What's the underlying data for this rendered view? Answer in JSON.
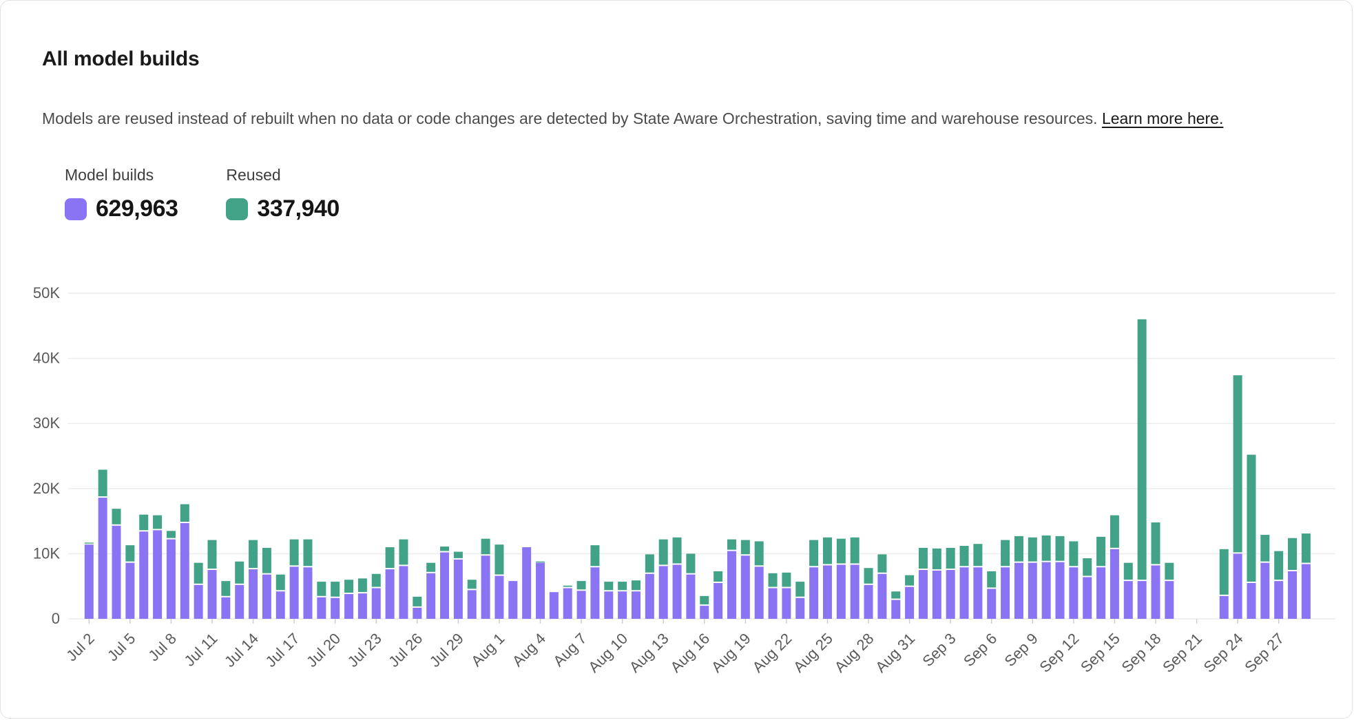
{
  "header": {
    "title": "All model builds",
    "description": "Models are reused instead of rebuilt when no data or code changes are detected by State Aware Orchestration, saving time and warehouse resources.",
    "link_label": "Learn more here."
  },
  "legend": {
    "builds": {
      "label": "Model builds",
      "value": "629,963"
    },
    "reused": {
      "label": "Reused",
      "value": "337,940"
    }
  },
  "colors": {
    "builds": "#8b74f4",
    "reused": "#42a287",
    "grid": "#ececec",
    "axis_text": "#5a5a5a",
    "tick": "#cfcfcf"
  },
  "chart_data": {
    "type": "bar",
    "stacked": true,
    "title": "All model builds",
    "xlabel": "",
    "ylabel": "",
    "ylim": [
      0,
      50000
    ],
    "grid": "horizontal",
    "legend_position": "top-left",
    "x_tick_every": 3,
    "yticks": {
      "values": [
        0,
        10000,
        20000,
        30000,
        40000,
        50000
      ],
      "labels": [
        "0",
        "10K",
        "20K",
        "30K",
        "40K",
        "50K"
      ]
    },
    "categories": [
      "Jul 2",
      "Jul 3",
      "Jul 4",
      "Jul 5",
      "Jul 6",
      "Jul 7",
      "Jul 8",
      "Jul 9",
      "Jul 10",
      "Jul 11",
      "Jul 12",
      "Jul 13",
      "Jul 14",
      "Jul 15",
      "Jul 16",
      "Jul 17",
      "Jul 18",
      "Jul 19",
      "Jul 20",
      "Jul 21",
      "Jul 22",
      "Jul 23",
      "Jul 24",
      "Jul 25",
      "Jul 26",
      "Jul 27",
      "Jul 28",
      "Jul 29",
      "Jul 30",
      "Jul 31",
      "Aug 1",
      "Aug 2",
      "Aug 3",
      "Aug 4",
      "Aug 5",
      "Aug 6",
      "Aug 7",
      "Aug 8",
      "Aug 9",
      "Aug 10",
      "Aug 11",
      "Aug 12",
      "Aug 13",
      "Aug 14",
      "Aug 15",
      "Aug 16",
      "Aug 17",
      "Aug 18",
      "Aug 19",
      "Aug 20",
      "Aug 21",
      "Aug 22",
      "Aug 23",
      "Aug 24",
      "Aug 25",
      "Aug 26",
      "Aug 27",
      "Aug 28",
      "Aug 29",
      "Aug 30",
      "Aug 31",
      "Sep 1",
      "Sep 2",
      "Sep 3",
      "Sep 4",
      "Sep 5",
      "Sep 6",
      "Sep 7",
      "Sep 8",
      "Sep 9",
      "Sep 10",
      "Sep 11",
      "Sep 12",
      "Sep 13",
      "Sep 14",
      "Sep 15",
      "Sep 16",
      "Sep 17",
      "Sep 18",
      "Sep 19",
      "Sep 20",
      "Sep 21",
      "Sep 22",
      "Sep 23",
      "Sep 24",
      "Sep 25",
      "Sep 26",
      "Sep 27",
      "Sep 28",
      "Sep 29"
    ],
    "series": [
      {
        "name": "Model builds",
        "color": "#8b74f4",
        "values": [
          11400,
          18600,
          14300,
          8600,
          13400,
          13600,
          12200,
          14700,
          5200,
          7500,
          3300,
          5200,
          7600,
          6800,
          4200,
          8000,
          7900,
          3300,
          3200,
          3800,
          3900,
          4700,
          7600,
          8100,
          1700,
          7000,
          10200,
          9100,
          4400,
          9700,
          6600,
          5800,
          11000,
          8600,
          4100,
          4700,
          4300,
          7900,
          4200,
          4200,
          4200,
          6900,
          8100,
          8300,
          6800,
          2000,
          5500,
          10400,
          9700,
          8000,
          4700,
          4700,
          3200,
          7900,
          8200,
          8300,
          8300,
          5200,
          6900,
          2900,
          4900,
          7500,
          7400,
          7500,
          7900,
          7900,
          4600,
          7900,
          8600,
          8600,
          8700,
          8700,
          7900,
          6400,
          7900,
          10700,
          5800,
          5800,
          8200,
          5800,
          0,
          0,
          0,
          3500,
          10000,
          5500,
          8600,
          5800,
          7300,
          8400
        ]
      },
      {
        "name": "Reused",
        "color": "#42a287",
        "values": [
          300,
          4300,
          2600,
          2700,
          2600,
          2300,
          1300,
          2900,
          3400,
          4600,
          2500,
          3600,
          4500,
          4100,
          2600,
          4200,
          4300,
          2400,
          2500,
          2200,
          2300,
          2200,
          3400,
          4100,
          1700,
          1600,
          900,
          1200,
          1600,
          2600,
          4800,
          0,
          0,
          200,
          0,
          400,
          1500,
          3400,
          1500,
          1500,
          1700,
          3000,
          4100,
          4200,
          3200,
          1500,
          1800,
          1800,
          2400,
          3900,
          2300,
          2400,
          2500,
          4200,
          4300,
          4000,
          4200,
          2600,
          3000,
          1300,
          1800,
          3400,
          3400,
          3400,
          3300,
          3600,
          2700,
          4200,
          4100,
          3900,
          4100,
          4000,
          4000,
          2900,
          4700,
          5200,
          2800,
          40200,
          6600,
          2800,
          0,
          0,
          0,
          7200,
          27400,
          19700,
          4300,
          4600,
          5100,
          4700
        ]
      }
    ]
  }
}
